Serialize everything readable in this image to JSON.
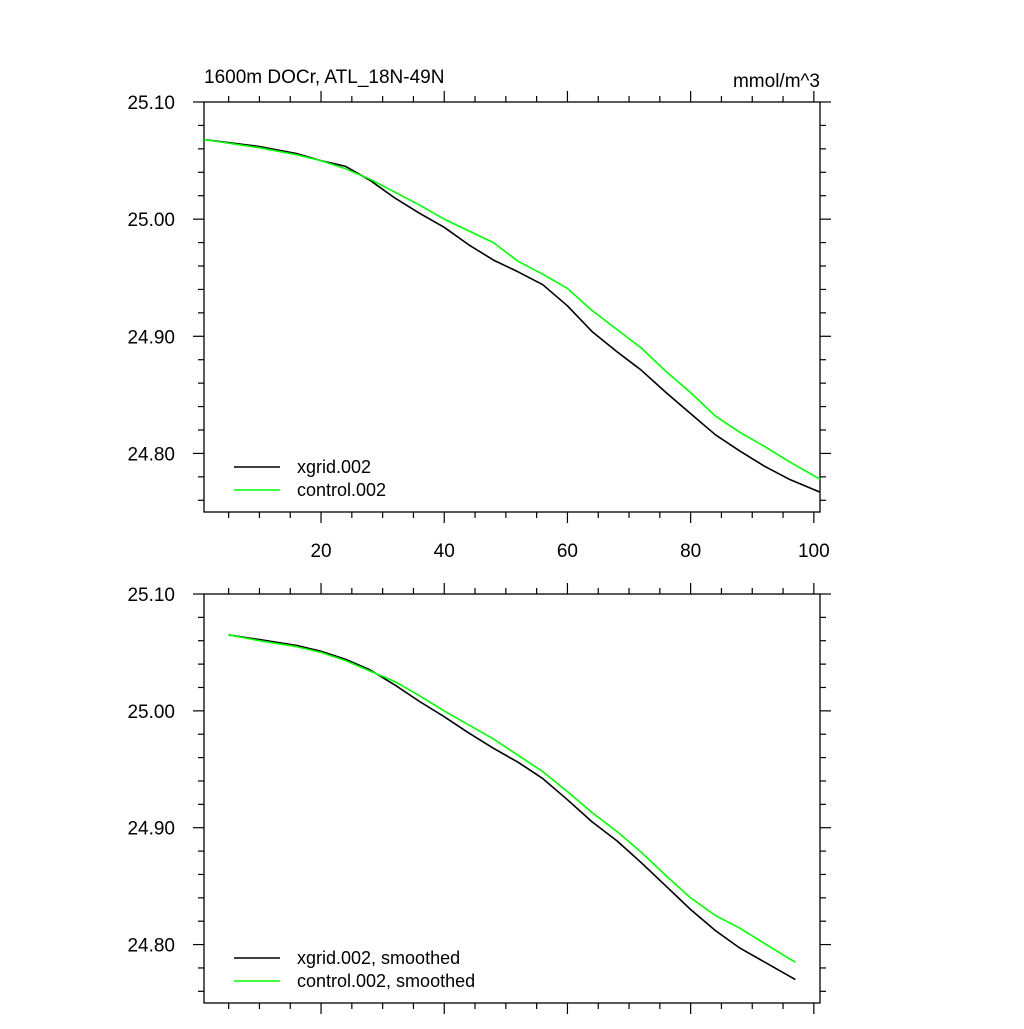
{
  "header": {
    "title": "1600m DOCr, ATL_18N-49N",
    "units": "mmol/m^3"
  },
  "chart_data": [
    {
      "type": "line",
      "xlim": [
        1,
        101
      ],
      "ylim": [
        24.75,
        25.1
      ],
      "x_ticks": [
        20,
        40,
        60,
        80,
        100
      ],
      "y_ticks": [
        24.8,
        24.9,
        25.0,
        25.1
      ],
      "x_tick_labels": [
        "20",
        "40",
        "60",
        "80",
        "100"
      ],
      "y_tick_labels": [
        "24.80",
        "24.90",
        "25.00",
        "25.10"
      ],
      "grid": false,
      "legend_position": "bottom-left",
      "series": [
        {
          "name": "xgrid.002",
          "color": "#000000",
          "x": [
            1,
            10,
            16,
            20,
            24,
            28,
            32,
            36,
            40,
            44,
            48,
            52,
            56,
            60,
            64,
            68,
            72,
            76,
            80,
            84,
            88,
            92,
            96,
            101
          ],
          "y": [
            25.068,
            25.062,
            25.056,
            25.05,
            25.045,
            25.033,
            25.018,
            25.005,
            24.993,
            24.978,
            24.965,
            24.955,
            24.944,
            24.926,
            24.904,
            24.887,
            24.871,
            24.852,
            24.834,
            24.816,
            24.802,
            24.789,
            24.778,
            24.767
          ]
        },
        {
          "name": "control.002",
          "color": "#00ff00",
          "x": [
            1,
            10,
            16,
            20,
            24,
            28,
            32,
            36,
            40,
            44,
            48,
            52,
            56,
            60,
            64,
            68,
            72,
            76,
            80,
            84,
            88,
            92,
            96,
            101
          ],
          "y": [
            25.068,
            25.061,
            25.055,
            25.05,
            25.043,
            25.034,
            25.023,
            25.012,
            25.0,
            24.99,
            24.98,
            24.964,
            24.953,
            24.941,
            24.922,
            24.906,
            24.89,
            24.87,
            24.852,
            24.832,
            24.818,
            24.806,
            24.793,
            24.778
          ]
        }
      ]
    },
    {
      "type": "line",
      "xlim": [
        1,
        101
      ],
      "ylim": [
        24.75,
        25.1
      ],
      "x_ticks": [
        20,
        40,
        60,
        80,
        100
      ],
      "y_ticks": [
        24.8,
        24.9,
        25.0,
        25.1
      ],
      "y_tick_labels": [
        "24.80",
        "24.90",
        "25.00",
        "25.10"
      ],
      "grid": false,
      "legend_position": "bottom-left",
      "series": [
        {
          "name": "xgrid.002, smoothed",
          "color": "#000000",
          "x": [
            5,
            10,
            16,
            20,
            24,
            28,
            32,
            36,
            40,
            44,
            48,
            52,
            56,
            60,
            64,
            68,
            72,
            76,
            80,
            84,
            88,
            92,
            96,
            97
          ],
          "y": [
            25.065,
            25.061,
            25.056,
            25.051,
            25.044,
            25.035,
            25.022,
            25.008,
            24.995,
            24.981,
            24.968,
            24.956,
            24.942,
            24.924,
            24.905,
            24.889,
            24.87,
            24.85,
            24.83,
            24.812,
            24.797,
            24.785,
            24.773,
            24.77
          ]
        },
        {
          "name": "control.002, smoothed",
          "color": "#00ff00",
          "x": [
            5,
            10,
            16,
            20,
            24,
            28,
            32,
            36,
            40,
            44,
            48,
            52,
            56,
            60,
            64,
            68,
            72,
            76,
            80,
            84,
            88,
            92,
            96,
            97
          ],
          "y": [
            25.065,
            25.06,
            25.055,
            25.05,
            25.043,
            25.034,
            25.025,
            25.013,
            25.0,
            24.988,
            24.976,
            24.962,
            24.948,
            24.931,
            24.913,
            24.897,
            24.879,
            24.859,
            24.84,
            24.825,
            24.814,
            24.801,
            24.788,
            24.785
          ]
        }
      ]
    }
  ]
}
